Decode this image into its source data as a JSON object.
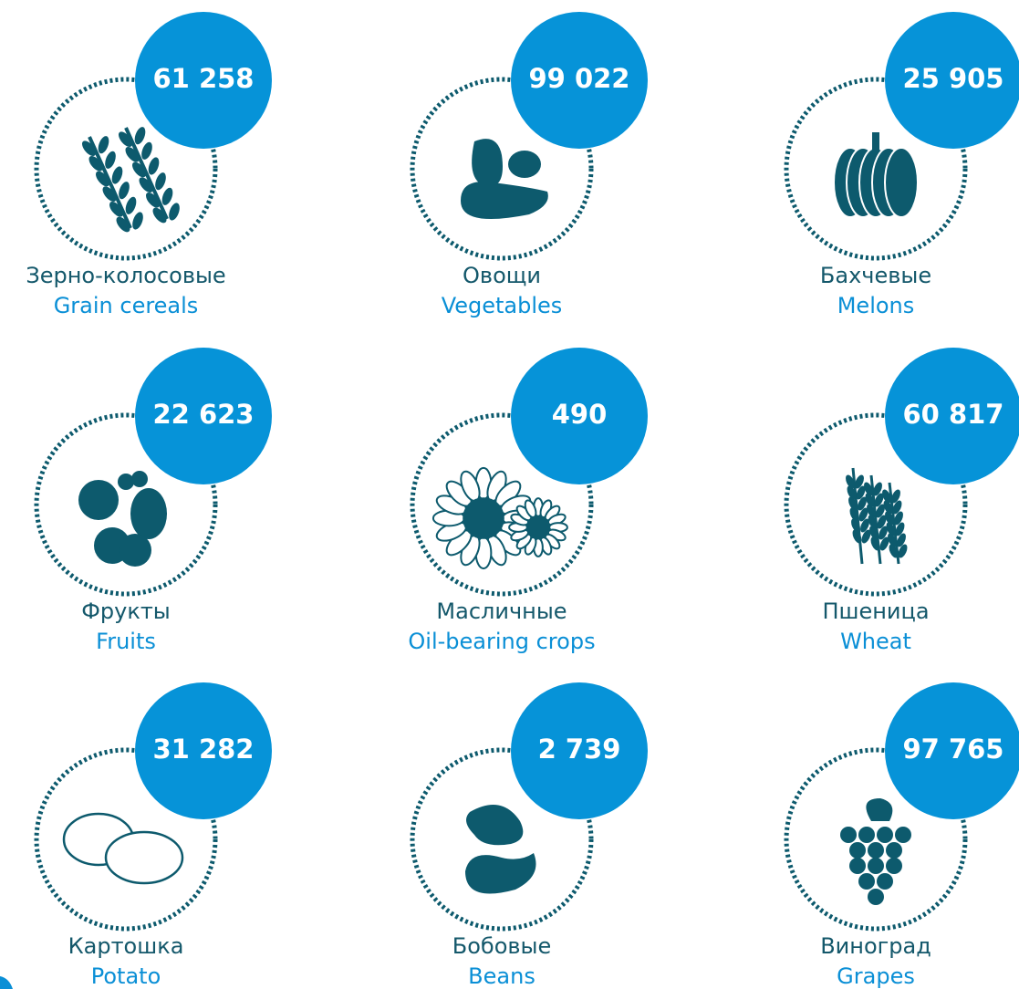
{
  "items": [
    {
      "value": "61 258",
      "label_ru": "Зерно-колосовые",
      "label_en": "Grain cereals"
    },
    {
      "value": "99 022",
      "label_ru": "Овощи",
      "label_en": "Vegetables"
    },
    {
      "value": "25 905",
      "label_ru": "Бахчевые",
      "label_en": "Melons"
    },
    {
      "value": "22 623",
      "label_ru": "Фрукты",
      "label_en": "Fruits"
    },
    {
      "value": "490",
      "label_ru": "Масличные",
      "label_en": "Oil-bearing crops"
    },
    {
      "value": "60 817",
      "label_ru": "Пшеница",
      "label_en": "Wheat"
    },
    {
      "value": "31 282",
      "label_ru": "Картошка",
      "label_en": "Potato"
    },
    {
      "value": "2 739",
      "label_ru": "Бобовые",
      "label_en": "Beans"
    },
    {
      "value": "97 765",
      "label_ru": "Виноград",
      "label_en": "Grapes"
    }
  ]
}
